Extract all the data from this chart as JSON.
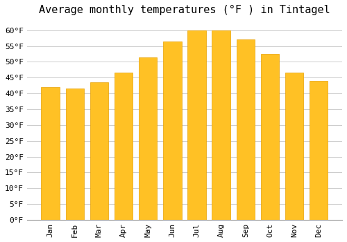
{
  "title": "Average monthly temperatures (°F ) in Tintagel",
  "months": [
    "Jan",
    "Feb",
    "Mar",
    "Apr",
    "May",
    "Jun",
    "Jul",
    "Aug",
    "Sep",
    "Oct",
    "Nov",
    "Dec"
  ],
  "values": [
    42,
    41.5,
    43.5,
    46.5,
    51.5,
    56.5,
    60,
    60,
    57,
    52.5,
    46.5,
    44
  ],
  "bar_color": "#FFC125",
  "bar_edge_color": "#E8A000",
  "background_color": "#FFFFFF",
  "grid_color": "#CCCCCC",
  "ylim": [
    0,
    63
  ],
  "yticks": [
    0,
    5,
    10,
    15,
    20,
    25,
    30,
    35,
    40,
    45,
    50,
    55,
    60
  ],
  "title_fontsize": 11,
  "tick_fontsize": 8,
  "font_family": "monospace"
}
